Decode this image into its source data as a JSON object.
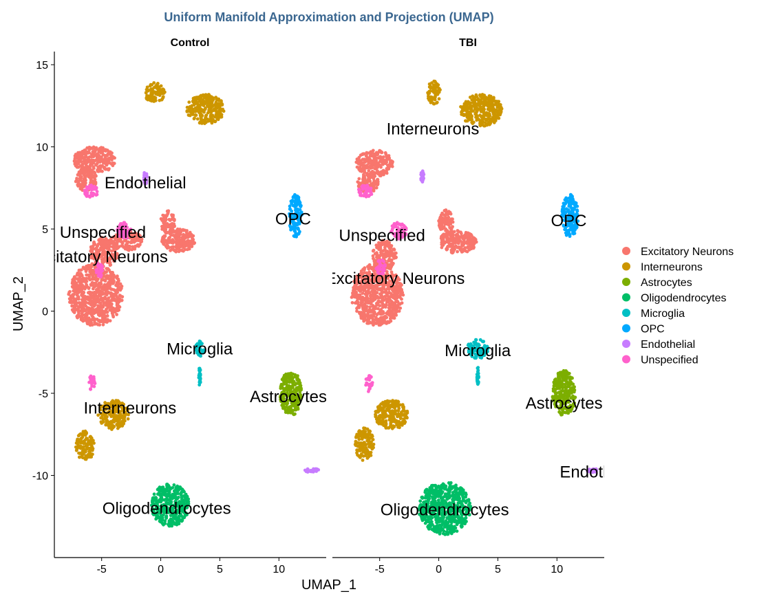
{
  "chart_data": {
    "type": "scatter",
    "title": "Uniform Manifold Approximation and Projection (UMAP)",
    "xlabel": "UMAP_1",
    "ylabel": "UMAP_2",
    "xlim": [
      -9,
      14
    ],
    "ylim": [
      -15,
      15.8
    ],
    "x_ticks": [
      -5,
      0,
      5,
      10
    ],
    "y_ticks": [
      15,
      10,
      5,
      0,
      -5,
      -10
    ],
    "legend_position": "right",
    "grid": false,
    "point_shape": "circle",
    "legend": [
      {
        "name": "Excitatory Neurons",
        "color": "#f8766d"
      },
      {
        "name": "Interneurons",
        "color": "#cd9600"
      },
      {
        "name": "Astrocytes",
        "color": "#7cae00"
      },
      {
        "name": "Oligodendrocytes",
        "color": "#00be67"
      },
      {
        "name": "Microglia",
        "color": "#00bfc4"
      },
      {
        "name": "OPC",
        "color": "#00a9ff"
      },
      {
        "name": "Endothelial",
        "color": "#c77cff"
      },
      {
        "name": "Unspecified",
        "color": "#ff61cc"
      }
    ],
    "facets": [
      {
        "name": "Control",
        "clusters": [
          {
            "type": "Excitatory Neurons",
            "cx": -5.5,
            "cy": 1.0,
            "rx": 2.3,
            "ry": 1.9
          },
          {
            "type": "Excitatory Neurons",
            "cx": -4.8,
            "cy": 3.6,
            "rx": 1.2,
            "ry": 0.9
          },
          {
            "type": "Excitatory Neurons",
            "cx": -2.8,
            "cy": 4.3,
            "rx": 1.3,
            "ry": 0.6
          },
          {
            "type": "Excitatory Neurons",
            "cx": 1.5,
            "cy": 4.3,
            "rx": 1.4,
            "ry": 0.7
          },
          {
            "type": "Excitatory Neurons",
            "cx": 0.6,
            "cy": 5.4,
            "rx": 0.6,
            "ry": 0.8
          },
          {
            "type": "Excitatory Neurons",
            "cx": -5.6,
            "cy": 9.2,
            "rx": 1.8,
            "ry": 0.8
          },
          {
            "type": "Excitatory Neurons",
            "cx": -6.3,
            "cy": 8.0,
            "rx": 0.9,
            "ry": 0.7
          },
          {
            "type": "Interneurons",
            "cx": 3.8,
            "cy": 12.3,
            "rx": 1.6,
            "ry": 0.9
          },
          {
            "type": "Interneurons",
            "cx": -0.5,
            "cy": 13.3,
            "rx": 0.9,
            "ry": 0.6
          },
          {
            "type": "Interneurons",
            "cx": -4.0,
            "cy": -6.3,
            "rx": 1.3,
            "ry": 0.9
          },
          {
            "type": "Interneurons",
            "cx": -6.4,
            "cy": -8.2,
            "rx": 0.8,
            "ry": 0.9
          },
          {
            "type": "Astrocytes",
            "cx": 11.0,
            "cy": -5.0,
            "rx": 0.9,
            "ry": 1.4
          },
          {
            "type": "Oligodendrocytes",
            "cx": 0.8,
            "cy": -11.8,
            "rx": 1.6,
            "ry": 1.3
          },
          {
            "type": "Microglia",
            "cx": 3.3,
            "cy": -2.3,
            "rx": 0.4,
            "ry": 0.5
          },
          {
            "type": "Microglia",
            "cx": 3.3,
            "cy": -4.0,
            "rx": 0.08,
            "ry": 0.6
          },
          {
            "type": "OPC",
            "cx": 11.4,
            "cy": 5.8,
            "rx": 0.55,
            "ry": 1.3
          },
          {
            "type": "Endothelial",
            "cx": -1.3,
            "cy": 8.1,
            "rx": 0.15,
            "ry": 0.4
          },
          {
            "type": "Endothelial",
            "cx": 12.8,
            "cy": -9.7,
            "rx": 0.6,
            "ry": 0.12
          },
          {
            "type": "Unspecified",
            "cx": -3.1,
            "cy": 4.9,
            "rx": 0.6,
            "ry": 0.5
          },
          {
            "type": "Unspecified",
            "cx": -5.9,
            "cy": 7.3,
            "rx": 0.6,
            "ry": 0.4
          },
          {
            "type": "Unspecified",
            "cx": -5.2,
            "cy": 2.5,
            "rx": 0.3,
            "ry": 0.5
          },
          {
            "type": "Unspecified",
            "cx": -5.8,
            "cy": -4.4,
            "rx": 0.3,
            "ry": 0.5
          }
        ],
        "labels": [
          {
            "text": "Endothelial",
            "x": -1.3,
            "y": 7.8
          },
          {
            "text": "OPC",
            "x": 11.2,
            "y": 5.6
          },
          {
            "text": "Unspecified",
            "x": -4.9,
            "y": 4.8
          },
          {
            "text": "Excitatory Neurons",
            "x": -5.3,
            "y": 3.3
          },
          {
            "text": "Microglia",
            "x": 3.3,
            "y": -2.3
          },
          {
            "text": "Astrocytes",
            "x": 10.8,
            "y": -5.2
          },
          {
            "text": "Interneurons",
            "x": -2.6,
            "y": -5.9
          },
          {
            "text": "Oligodendrocytes",
            "x": 0.5,
            "y": -12.0
          }
        ]
      },
      {
        "name": "TBI",
        "clusters": [
          {
            "type": "Excitatory Neurons",
            "cx": -5.2,
            "cy": 1.0,
            "rx": 2.2,
            "ry": 1.9
          },
          {
            "type": "Excitatory Neurons",
            "cx": -4.6,
            "cy": 3.4,
            "rx": 1.0,
            "ry": 0.9
          },
          {
            "type": "Excitatory Neurons",
            "cx": 1.6,
            "cy": 4.2,
            "rx": 1.6,
            "ry": 0.7
          },
          {
            "type": "Excitatory Neurons",
            "cx": 0.6,
            "cy": 5.4,
            "rx": 0.6,
            "ry": 0.8
          },
          {
            "type": "Excitatory Neurons",
            "cx": -5.4,
            "cy": 9.0,
            "rx": 1.6,
            "ry": 0.8
          },
          {
            "type": "Excitatory Neurons",
            "cx": -6.0,
            "cy": 7.8,
            "rx": 0.9,
            "ry": 0.6
          },
          {
            "type": "Interneurons",
            "cx": 3.6,
            "cy": 12.2,
            "rx": 1.8,
            "ry": 1.0
          },
          {
            "type": "Interneurons",
            "cx": -0.4,
            "cy": 13.3,
            "rx": 0.6,
            "ry": 0.7
          },
          {
            "type": "Interneurons",
            "cx": -4.0,
            "cy": -6.3,
            "rx": 1.4,
            "ry": 0.9
          },
          {
            "type": "Interneurons",
            "cx": -6.3,
            "cy": -8.1,
            "rx": 0.8,
            "ry": 1.0
          },
          {
            "type": "Astrocytes",
            "cx": 10.6,
            "cy": -5.0,
            "rx": 1.0,
            "ry": 1.4
          },
          {
            "type": "Oligodendrocytes",
            "cx": 0.5,
            "cy": -12.0,
            "rx": 2.2,
            "ry": 1.6
          },
          {
            "type": "Microglia",
            "cx": 3.3,
            "cy": -2.3,
            "rx": 0.9,
            "ry": 0.6
          },
          {
            "type": "Microglia",
            "cx": 3.3,
            "cy": -4.0,
            "rx": 0.08,
            "ry": 0.6
          },
          {
            "type": "OPC",
            "cx": 11.1,
            "cy": 5.8,
            "rx": 0.7,
            "ry": 1.3
          },
          {
            "type": "Endothelial",
            "cx": -1.4,
            "cy": 8.2,
            "rx": 0.15,
            "ry": 0.4
          },
          {
            "type": "Endothelial",
            "cx": 13.0,
            "cy": -9.7,
            "rx": 0.5,
            "ry": 0.12
          },
          {
            "type": "Unspecified",
            "cx": -3.4,
            "cy": 4.9,
            "rx": 0.7,
            "ry": 0.5
          },
          {
            "type": "Unspecified",
            "cx": -6.2,
            "cy": 7.3,
            "rx": 0.6,
            "ry": 0.4
          },
          {
            "type": "Unspecified",
            "cx": -4.9,
            "cy": 2.7,
            "rx": 0.4,
            "ry": 0.5
          },
          {
            "type": "Unspecified",
            "cx": -5.9,
            "cy": -4.4,
            "rx": 0.3,
            "ry": 0.5
          }
        ],
        "labels": [
          {
            "text": "Interneurons",
            "x": -0.5,
            "y": 11.1
          },
          {
            "text": "OPC",
            "x": 11.0,
            "y": 5.5
          },
          {
            "text": "Unspecified",
            "x": -4.8,
            "y": 4.6
          },
          {
            "text": "Excitatory Neurons",
            "x": -3.7,
            "y": 2.0
          },
          {
            "text": "Microglia",
            "x": 3.3,
            "y": -2.4
          },
          {
            "text": "Astrocytes",
            "x": 10.6,
            "y": -5.6
          },
          {
            "text": "Endothelial",
            "x": 13.7,
            "y": -9.8
          },
          {
            "text": "Oligodendrocytes",
            "x": 0.5,
            "y": -12.1
          }
        ]
      }
    ]
  }
}
